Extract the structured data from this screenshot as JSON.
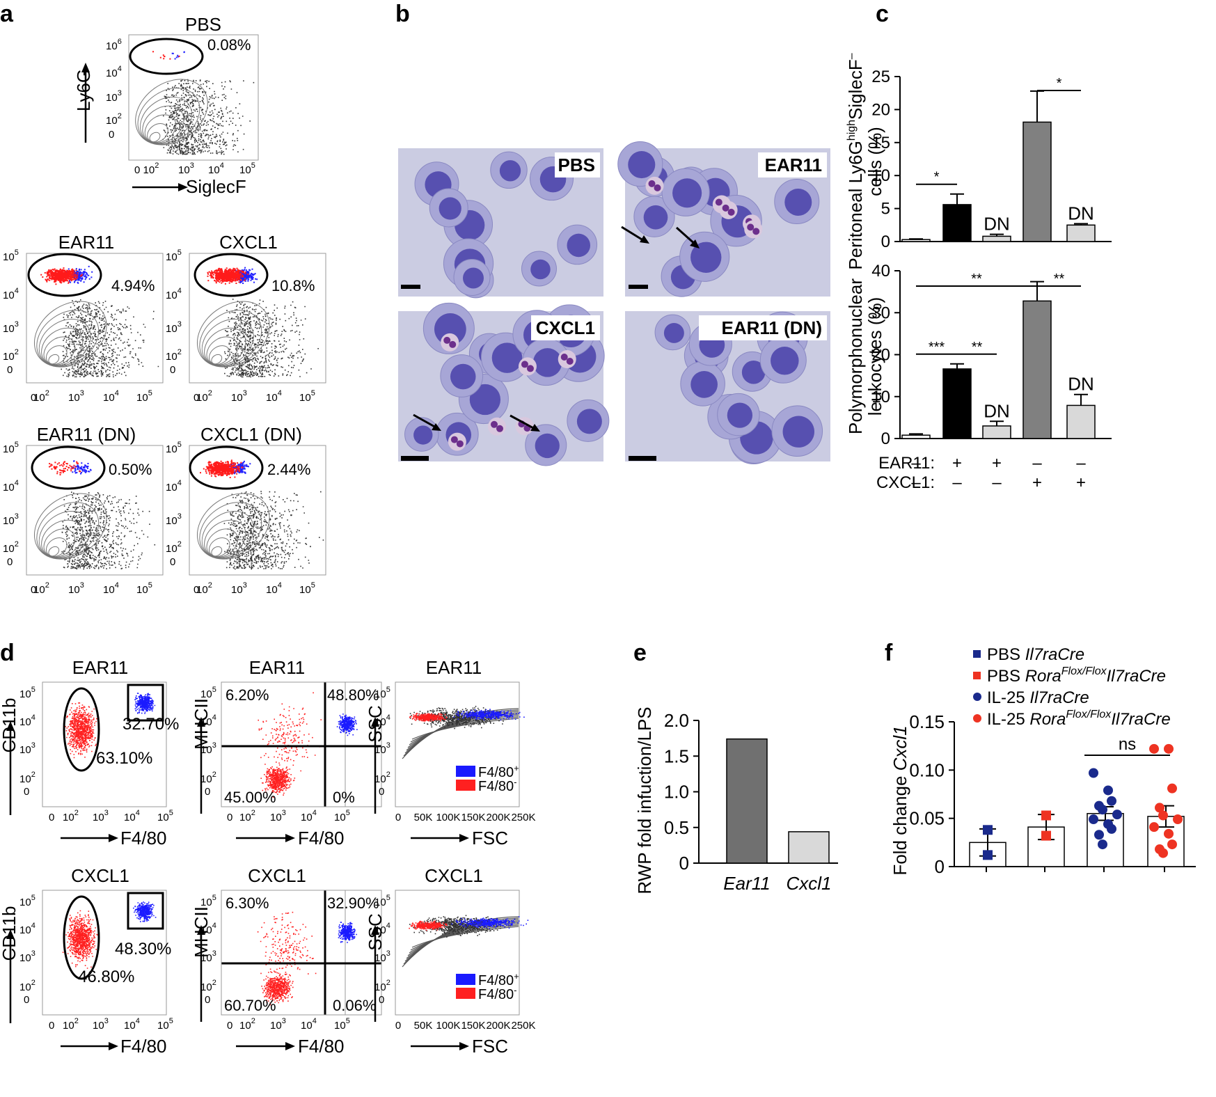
{
  "panel_labels": {
    "a": "a",
    "b": "b",
    "c": "c",
    "d": "d",
    "e": "e",
    "f": "f"
  },
  "panel_a": {
    "x_axis": "SiglecF",
    "y_axis": "Ly6G",
    "ticks": {
      "t0": "0",
      "t2": "10",
      "t2e": "2",
      "t3": "10",
      "t3e": "3",
      "t4": "10",
      "t4e": "4",
      "t5": "10",
      "t5e": "5",
      "t6": "10",
      "t6e": "6"
    },
    "plots": [
      {
        "title": "PBS",
        "gate_percent": "0.08%"
      },
      {
        "title": "EAR11",
        "gate_percent": "4.94%"
      },
      {
        "title": "CXCL1",
        "gate_percent": "10.8%"
      },
      {
        "title": "EAR11 (DN)",
        "gate_percent": "0.50%"
      },
      {
        "title": "CXCL1 (DN)",
        "gate_percent": "2.44%"
      }
    ]
  },
  "panel_b": {
    "images": [
      {
        "label": "PBS"
      },
      {
        "label": "EAR11"
      },
      {
        "label": "CXCL1"
      },
      {
        "label": "EAR11 (DN)"
      }
    ]
  },
  "panel_c": {
    "chart_data": [
      {
        "type": "bar",
        "ylabel_line1": "Peritoneal Ly6G",
        "ylabel_sup": "high",
        "ylabel_line1b": "SiglecF",
        "ylabel_sup2": "–",
        "ylabel_line2": "cells (%)",
        "ylim": [
          0,
          25
        ],
        "yticks": [
          "0",
          "5",
          "10",
          "15",
          "20",
          "25"
        ],
        "values": [
          0.3,
          5.6,
          0.8,
          18.1,
          2.5
        ],
        "errors": [
          0.1,
          1.6,
          0.3,
          4.7,
          0.2
        ],
        "colors": [
          "#ffffff",
          "#000000",
          "#d9d9d9",
          "#808080",
          "#d9d9d9"
        ],
        "bar_labels": [
          "",
          "",
          "DN",
          "",
          "DN"
        ],
        "significance": [
          {
            "from": 0,
            "to": 1,
            "label": "*"
          },
          {
            "from": 3,
            "to": 4,
            "label": "*"
          }
        ]
      },
      {
        "type": "bar",
        "ylabel_line1": "Polymorphonuclear",
        "ylabel_line2": "leukocytes (%)",
        "ylim": [
          0,
          40
        ],
        "yticks": [
          "0",
          "10",
          "20",
          "30",
          "40"
        ],
        "values": [
          0.8,
          16.6,
          3.0,
          32.8,
          7.9
        ],
        "errors": [
          0.3,
          1.2,
          1.1,
          4.6,
          2.6
        ],
        "colors": [
          "#ffffff",
          "#000000",
          "#d9d9d9",
          "#808080",
          "#d9d9d9"
        ],
        "bar_labels": [
          "",
          "",
          "DN",
          "",
          "DN"
        ],
        "significance": [
          {
            "from": 0,
            "to": 1,
            "label": "***"
          },
          {
            "from": 1,
            "to": 2,
            "label": "**"
          },
          {
            "from": 0,
            "to": 3,
            "label": "**"
          },
          {
            "from": 3,
            "to": 4,
            "label": "**"
          }
        ]
      }
    ],
    "conditions": [
      {
        "name": "EAR11:",
        "values": [
          "–",
          "+",
          "+",
          "–",
          "–"
        ]
      },
      {
        "name": "CXCL1:",
        "values": [
          "–",
          "–",
          "–",
          "+",
          "+"
        ]
      }
    ]
  },
  "panel_d": {
    "rows": [
      {
        "title": "EAR11",
        "cd11b_gate_neg": "63.10%",
        "cd11b_gate_pos": "32.70%",
        "quad": {
          "ul": "6.20%",
          "ur": "48.80%",
          "ll": "45.00%",
          "lr": "0%"
        }
      },
      {
        "title": "CXCL1",
        "cd11b_gate_neg": "46.80%",
        "cd11b_gate_pos": "48.30%",
        "quad": {
          "ul": "6.30%",
          "ur": "32.90%",
          "ll": "60.70%",
          "lr": "0.06%"
        }
      }
    ],
    "axes": {
      "cd11b": "CD11b",
      "mhcii": "MHCII",
      "ssc": "SSC",
      "f480": "F4/80",
      "fsc": "FSC"
    },
    "fsc_ticks": [
      "0",
      "50K",
      "100K",
      "150K",
      "200K",
      "250K"
    ],
    "legend": {
      "pos": "F4/80",
      "pos_sup": "+",
      "neg": "F4/80",
      "neg_sup": "-"
    },
    "colors": {
      "pos": "#1a1aff",
      "neg": "#ff2020"
    }
  },
  "panel_e": {
    "chart_data": {
      "type": "bar",
      "categories": [
        "Ear11",
        "Cxcl1"
      ],
      "values": [
        1.74,
        0.44
      ],
      "ylabel": "RWP fold infuction/LPS",
      "ylim": [
        0,
        2.0
      ],
      "yticks": [
        "0",
        "0.5",
        "1.0",
        "1.5",
        "2.0"
      ],
      "colors": [
        "#707070",
        "#d9d9d9"
      ]
    }
  },
  "panel_f": {
    "legend": [
      {
        "prefix": "PBS ",
        "gene": "Il7raCre",
        "sup": "",
        "gene2": "",
        "marker": "square",
        "color": "#1a2a8c"
      },
      {
        "prefix": "PBS ",
        "gene": "Rora",
        "sup": "Flox/Flox",
        "gene2": "Il7raCre",
        "marker": "square",
        "color": "#ee3322"
      },
      {
        "prefix": "IL-25 ",
        "gene": "Il7raCre",
        "sup": "",
        "gene2": "",
        "marker": "circle",
        "color": "#1a2a8c"
      },
      {
        "prefix": "IL-25 ",
        "gene": "Rora",
        "sup": "Flox/Flox",
        "gene2": "Il7raCre",
        "marker": "circle",
        "color": "#ee3322"
      }
    ],
    "chart_data": {
      "type": "bar",
      "ylabel_prefix": "Fold change ",
      "ylabel_gene": "Cxcl1",
      "ylim": [
        0,
        0.15
      ],
      "yticks": [
        "0",
        "0.05",
        "0.10",
        "0.15"
      ],
      "means": [
        0.025,
        0.041,
        0.055,
        0.052
      ],
      "errors": [
        0.014,
        0.013,
        0.007,
        0.011
      ],
      "points": [
        [
          0.038,
          0.012
        ],
        [
          0.053,
          0.032
        ],
        [
          0.097,
          0.079,
          0.068,
          0.063,
          0.059,
          0.054,
          0.049,
          0.044,
          0.039,
          0.033,
          0.023
        ],
        [
          0.122,
          0.122,
          0.081,
          0.061,
          0.053,
          0.049,
          0.041,
          0.034,
          0.023,
          0.018,
          0.014
        ]
      ],
      "significance": {
        "from": 2,
        "to": 3,
        "label": "ns"
      }
    }
  }
}
